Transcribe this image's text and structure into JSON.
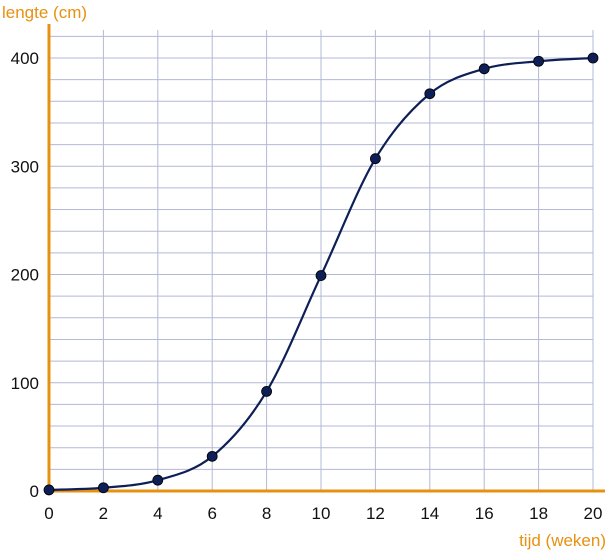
{
  "chart_data": {
    "type": "line",
    "title": "",
    "xlabel": "tijd (weken)",
    "ylabel": "lengte (cm)",
    "xlim": [
      0,
      20
    ],
    "ylim": [
      0,
      400
    ],
    "x_ticks": [
      0,
      2,
      4,
      6,
      8,
      10,
      12,
      14,
      16,
      18,
      20
    ],
    "x_tick_labels": [
      "0",
      "2",
      "4",
      "6",
      "8",
      "10",
      "12",
      "14",
      "16",
      "18",
      "20"
    ],
    "y_ticks": [
      0,
      100,
      200,
      300,
      400
    ],
    "y_tick_labels": [
      "0",
      "100",
      "200",
      "300",
      "400"
    ],
    "x_minor_step": 2,
    "y_minor_step": 20,
    "grid": true,
    "legend": "none",
    "colors": {
      "axis": "#e8900f",
      "grid": "#b3b9d6",
      "curve": "#0d1f56",
      "point": "#0d1f56"
    },
    "series": [
      {
        "x": [
          0,
          2,
          4,
          6,
          8,
          10,
          12,
          14,
          16,
          18,
          20
        ],
        "y": [
          1,
          3,
          10,
          32,
          92,
          199,
          307,
          367,
          390,
          397,
          400
        ]
      }
    ]
  }
}
